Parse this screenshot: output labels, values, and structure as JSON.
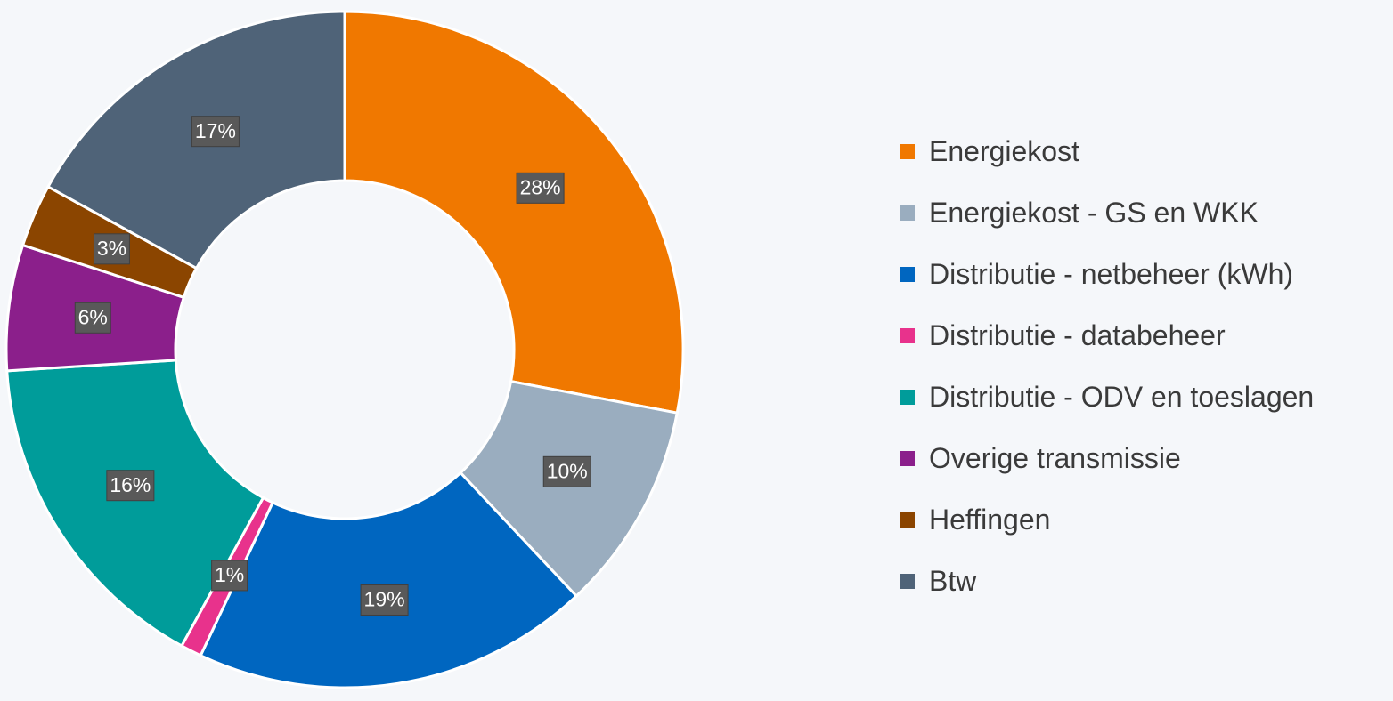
{
  "chart_data": {
    "type": "pie",
    "donut": true,
    "title": "",
    "legend_position": "right",
    "start_angle_deg": 0,
    "direction": "clockwise",
    "series": [
      {
        "name": "Energiekost",
        "value": 28,
        "label": "28%",
        "color": "#F07800"
      },
      {
        "name": "Energiekost - GS en WKK",
        "value": 10,
        "label": "10%",
        "color": "#9AADBF"
      },
      {
        "name": "Distributie - netbeheer (kWh)",
        "value": 19,
        "label": "19%",
        "color": "#0066C0"
      },
      {
        "name": "Distributie - databeheer",
        "value": 1,
        "label": "1%",
        "color": "#E8328C"
      },
      {
        "name": "Distributie - ODV en toeslagen",
        "value": 16,
        "label": "16%",
        "color": "#009C9A"
      },
      {
        "name": "Overige transmissie",
        "value": 6,
        "label": "6%",
        "color": "#8B1F8B"
      },
      {
        "name": "Heffingen",
        "value": 3,
        "label": "3%",
        "color": "#8B4500"
      },
      {
        "name": "Btw",
        "value": 17,
        "label": "17%",
        "color": "#4F6378"
      }
    ]
  }
}
